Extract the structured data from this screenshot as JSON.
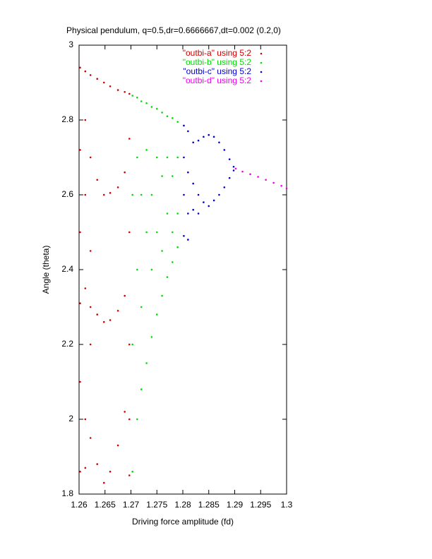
{
  "chart_data": {
    "type": "scatter",
    "title": "Physical pendulum, q=0.5,dr=0.6666667,dt=0.002 (0.2,0)",
    "xlabel": "Driving force amplitude (fd)",
    "ylabel": "Angle (theta)",
    "xlim": [
      1.26,
      1.3
    ],
    "ylim": [
      1.8,
      3
    ],
    "xticks": [
      1.26,
      1.265,
      1.27,
      1.275,
      1.28,
      1.285,
      1.29,
      1.295,
      1.3
    ],
    "yticks": [
      1.8,
      2,
      2.2,
      2.4,
      2.6,
      2.8,
      3
    ],
    "legend": "top right",
    "series": [
      {
        "name": "\"outbi-a\" using 5:2",
        "color": "#cc0000",
        "x": [
          1.2602,
          1.2602,
          1.2602,
          1.2602,
          1.2602,
          1.2602,
          1.2612,
          1.2612,
          1.2612,
          1.2612,
          1.2612,
          1.2612,
          1.2622,
          1.2622,
          1.2622,
          1.2622,
          1.2622,
          1.2622,
          1.2635,
          1.2635,
          1.2635,
          1.2635,
          1.2648,
          1.2648,
          1.2648,
          1.2648,
          1.266,
          1.266,
          1.266,
          1.266,
          1.2675,
          1.2675,
          1.2675,
          1.2675,
          1.2688,
          1.2688,
          1.2688,
          1.2688,
          1.2697,
          1.2697,
          1.2697,
          1.2697,
          1.2697,
          1.2697
        ],
        "values": [
          2.94,
          2.72,
          2.5,
          2.31,
          2.1,
          1.86,
          2.93,
          2.8,
          2.6,
          2.35,
          2.0,
          1.87,
          2.92,
          2.7,
          2.3,
          2.2,
          1.95,
          2.45,
          2.91,
          2.64,
          2.28,
          1.88,
          2.9,
          2.6,
          2.26,
          1.83,
          2.89,
          2.605,
          2.265,
          1.86,
          2.88,
          2.62,
          2.29,
          1.93,
          2.875,
          2.66,
          2.33,
          2.02,
          2.87,
          2.75,
          2.5,
          2.2,
          2.0,
          1.85
        ]
      },
      {
        "name": "\"outbi-b\" using 5:2",
        "color": "#00dd00",
        "x": [
          1.2703,
          1.2703,
          1.2703,
          1.2703,
          1.2712,
          1.2712,
          1.2712,
          1.2712,
          1.272,
          1.272,
          1.272,
          1.272,
          1.273,
          1.273,
          1.273,
          1.273,
          1.274,
          1.274,
          1.274,
          1.274,
          1.275,
          1.275,
          1.275,
          1.275,
          1.276,
          1.276,
          1.276,
          1.276,
          1.277,
          1.277,
          1.277,
          1.277,
          1.278,
          1.278,
          1.278,
          1.278,
          1.279,
          1.279,
          1.279,
          1.279
        ],
        "values": [
          2.865,
          2.6,
          2.2,
          1.86,
          2.86,
          2.7,
          2.4,
          2.0,
          2.85,
          2.6,
          2.3,
          2.08,
          2.845,
          2.72,
          2.5,
          2.15,
          2.835,
          2.6,
          2.4,
          2.22,
          2.83,
          2.7,
          2.5,
          2.28,
          2.82,
          2.65,
          2.45,
          2.33,
          2.81,
          2.7,
          2.55,
          2.38,
          2.805,
          2.65,
          2.5,
          2.42,
          2.795,
          2.7,
          2.55,
          2.46
        ]
      },
      {
        "name": "\"outbi-c\" using 5:2",
        "color": "#0000cc",
        "x": [
          1.2802,
          1.2802,
          1.2802,
          1.2802,
          1.281,
          1.281,
          1.281,
          1.281,
          1.282,
          1.282,
          1.282,
          1.283,
          1.283,
          1.283,
          1.284,
          1.284,
          1.285,
          1.285,
          1.286,
          1.286,
          1.287,
          1.287,
          1.288,
          1.288,
          1.289,
          1.289,
          1.2898,
          1.2898
        ],
        "values": [
          2.785,
          2.7,
          2.6,
          2.49,
          2.77,
          2.66,
          2.55,
          2.48,
          2.74,
          2.63,
          2.56,
          2.745,
          2.6,
          2.55,
          2.755,
          2.58,
          2.76,
          2.57,
          2.755,
          2.585,
          2.74,
          2.6,
          2.72,
          2.62,
          2.695,
          2.645,
          2.675,
          2.665
        ]
      },
      {
        "name": "\"outbi-d\" using 5:2",
        "color": "#ee00ee",
        "x": [
          1.2902,
          1.2915,
          1.293,
          1.2945,
          1.296,
          1.2975,
          1.299,
          1.3
        ],
        "values": [
          2.67,
          2.662,
          2.655,
          2.648,
          2.64,
          2.632,
          2.624,
          2.617
        ]
      }
    ]
  }
}
